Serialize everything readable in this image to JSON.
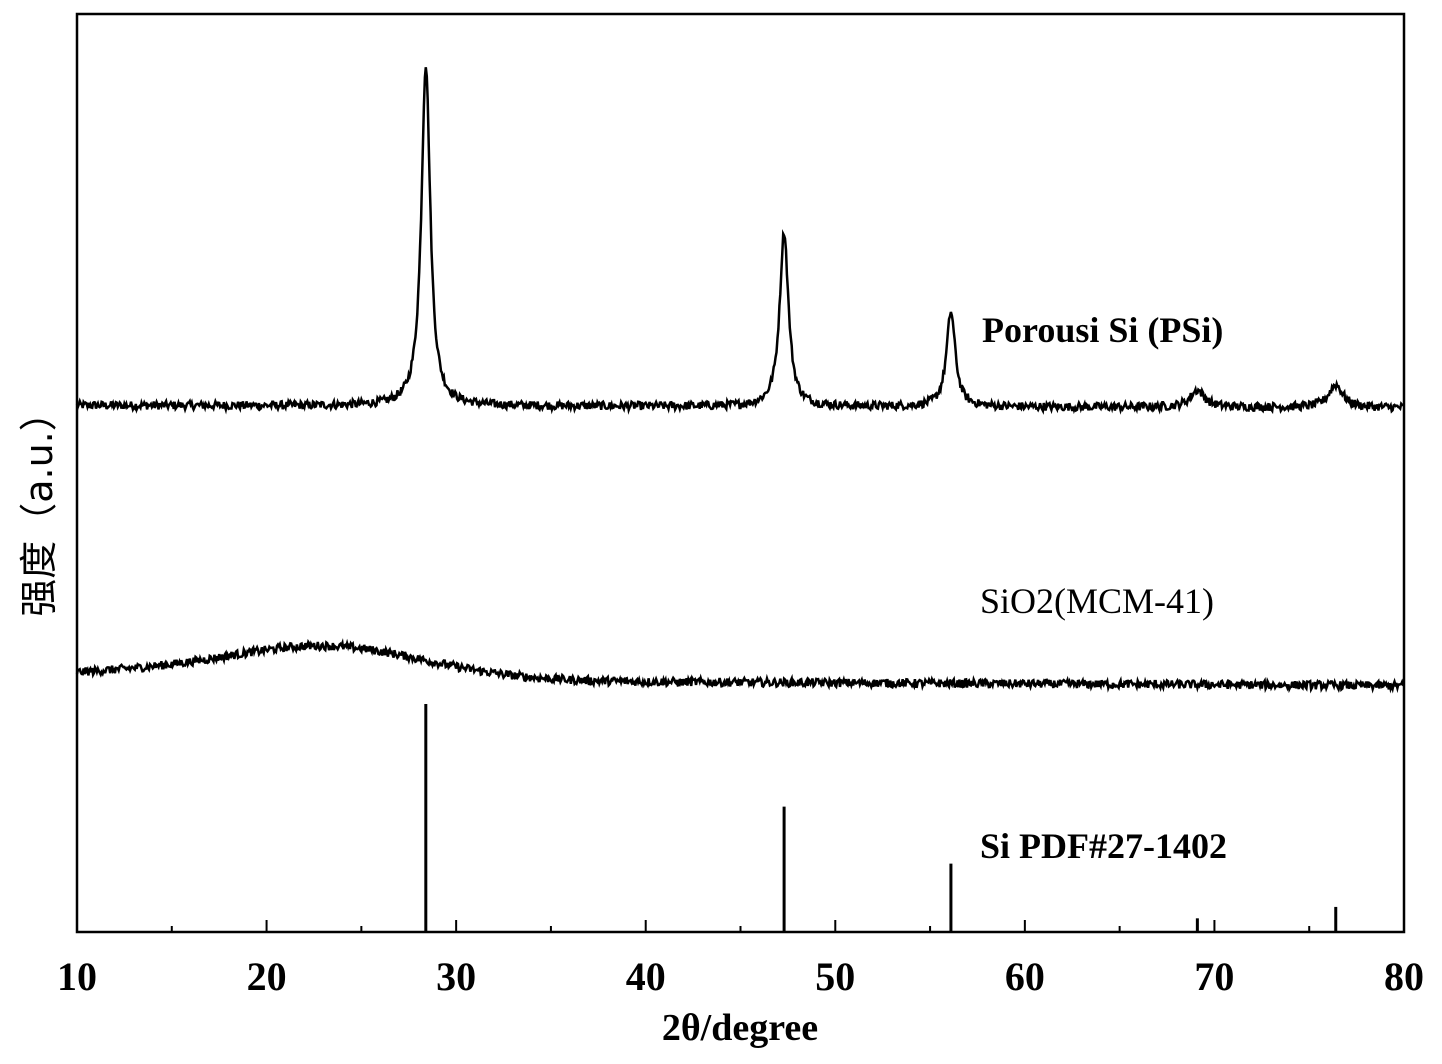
{
  "chart_data": {
    "type": "line",
    "xlabel": "2θ/degree",
    "ylabel": "强度（a.u.）",
    "xlim": [
      10,
      80
    ],
    "x_ticks": [
      "10",
      "20",
      "30",
      "40",
      "50",
      "60",
      "70",
      "80"
    ],
    "grid": false,
    "series": [
      {
        "name": "Porousi Si (PSi)",
        "kind": "line",
        "baseline": 0.7,
        "baseline_end": 0.64,
        "peaks": [
          {
            "x": 28.4,
            "height": 9.0
          },
          {
            "x": 47.3,
            "height": 4.6
          },
          {
            "x": 56.1,
            "height": 2.5
          },
          {
            "x": 69.1,
            "height": 0.45
          },
          {
            "x": 76.4,
            "height": 0.6
          }
        ]
      },
      {
        "name": "SiO2(MCM-41)",
        "kind": "line",
        "baseline": -6.5,
        "hump": {
          "x": 23,
          "height": 0.9
        }
      },
      {
        "name": "Si PDF#27-1402",
        "kind": "stick",
        "sticks": [
          {
            "x": 28.4,
            "intensity": 100
          },
          {
            "x": 47.3,
            "intensity": 55
          },
          {
            "x": 56.1,
            "intensity": 30
          },
          {
            "x": 69.1,
            "intensity": 6
          },
          {
            "x": 76.4,
            "intensity": 11
          }
        ]
      }
    ]
  }
}
